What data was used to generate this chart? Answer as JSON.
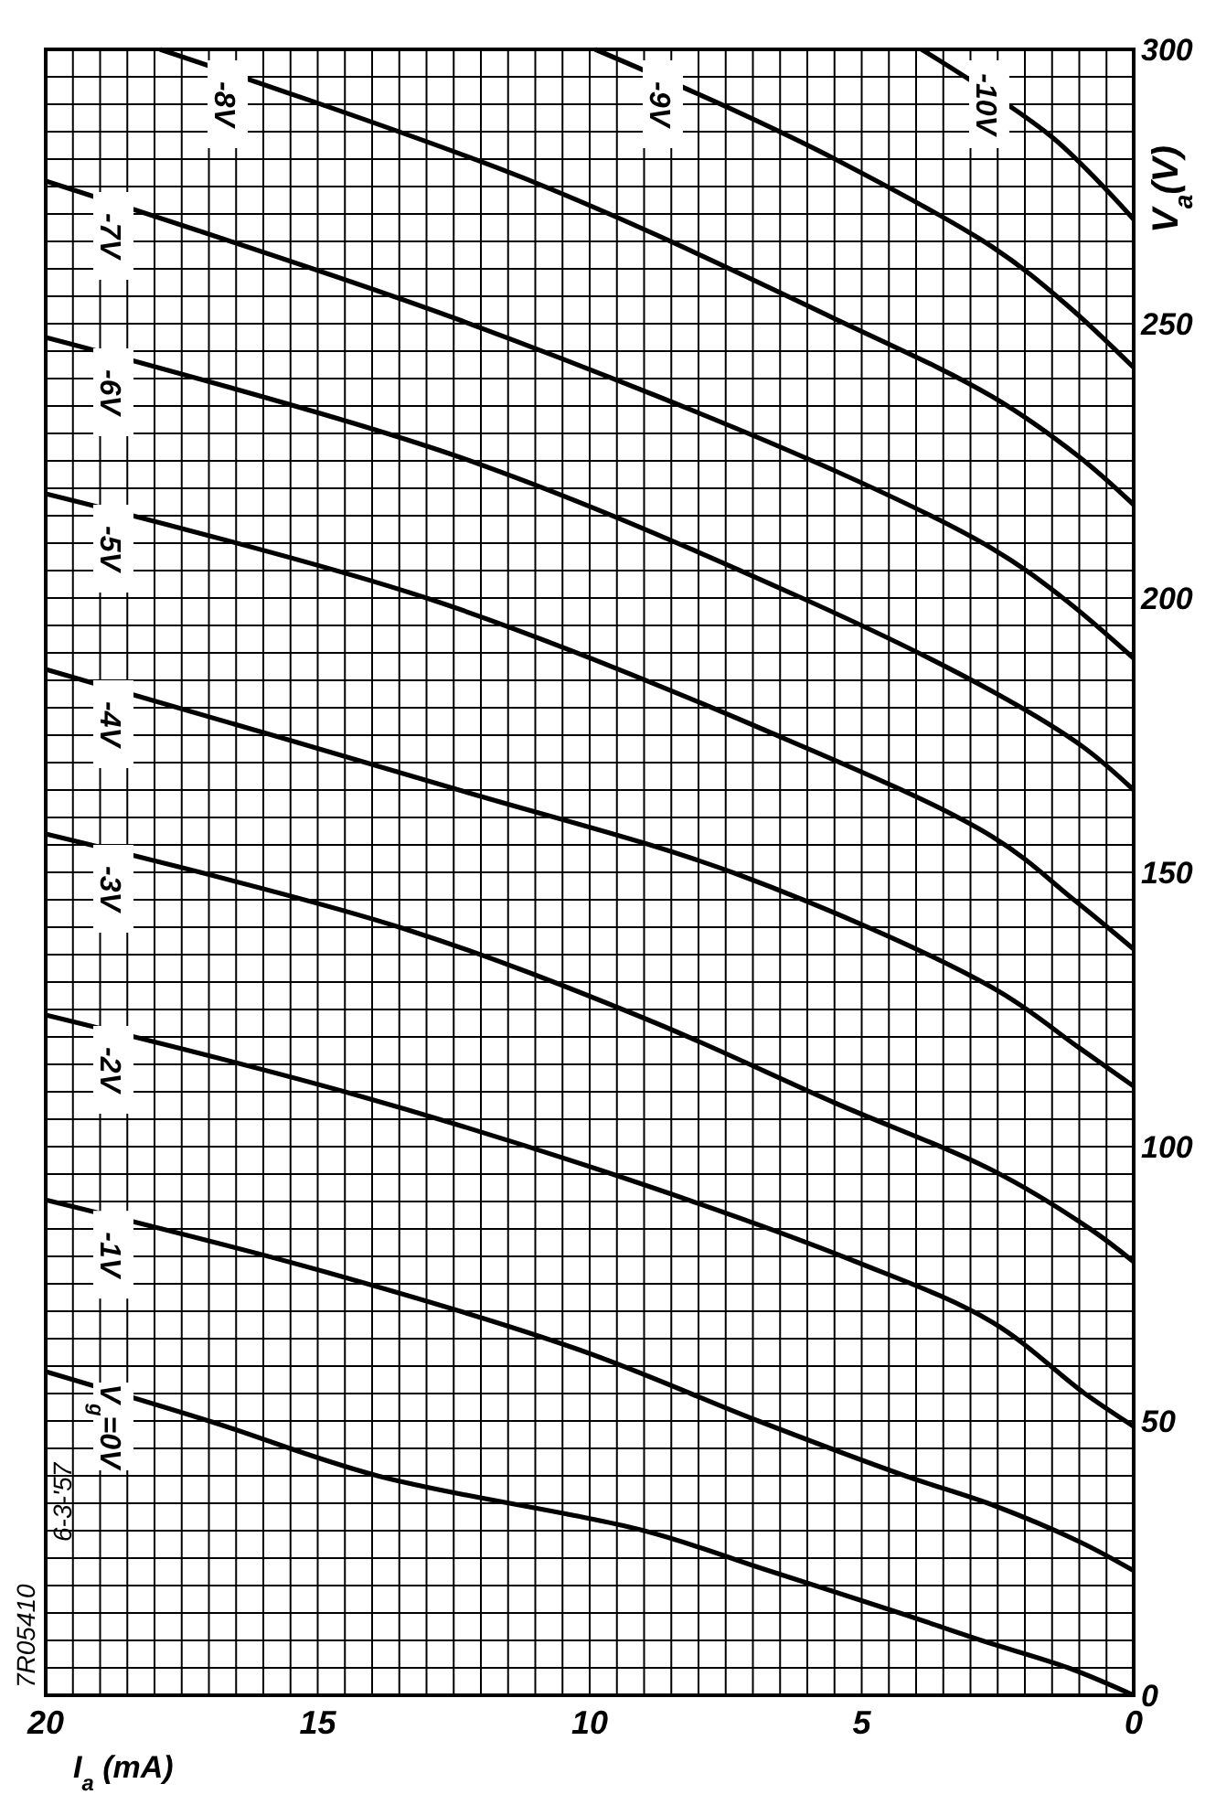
{
  "chart_data": {
    "type": "line",
    "xlabel": "I$_{a}$ (mA)",
    "ylabel": "V$_{a}$(V)",
    "xlim": [
      20,
      0
    ],
    "ylim": [
      0,
      300
    ],
    "yticks": [
      0,
      {
        "value": 5,
        "label": null
      },
      {
        "value": 10,
        "label": null
      },
      {
        "value": 15,
        "label": null
      },
      {
        "value": 20,
        "label": null
      },
      {
        "value": 25,
        "label": null
      },
      {
        "value": 30,
        "label": null
      },
      {
        "value": 35,
        "label": null
      },
      {
        "value": 40,
        "label": null
      },
      {
        "value": 45,
        "label": null
      },
      50,
      {
        "value": 55,
        "label": null
      },
      {
        "value": 60,
        "label": null
      },
      {
        "value": 65,
        "label": null
      },
      {
        "value": 70,
        "label": null
      },
      {
        "value": 75,
        "label": null
      },
      {
        "value": 80,
        "label": null
      },
      {
        "value": 85,
        "label": null
      },
      {
        "value": 90,
        "label": null
      },
      {
        "value": 95,
        "label": null
      },
      100,
      {
        "value": 105,
        "label": null
      },
      {
        "value": 110,
        "label": null
      },
      {
        "value": 115,
        "label": null
      },
      {
        "value": 120,
        "label": null
      },
      {
        "value": 125,
        "label": null
      },
      {
        "value": 130,
        "label": null
      },
      {
        "value": 135,
        "label": null
      },
      {
        "value": 140,
        "label": null
      },
      {
        "value": 145,
        "label": null
      },
      150,
      {
        "value": 155,
        "label": null
      },
      {
        "value": 160,
        "label": null
      },
      {
        "value": 165,
        "label": null
      },
      {
        "value": 170,
        "label": null
      },
      {
        "value": 175,
        "label": null
      },
      {
        "value": 180,
        "label": null
      },
      {
        "value": 185,
        "label": null
      },
      {
        "value": 190,
        "label": null
      },
      {
        "value": 195,
        "label": null
      },
      200,
      {
        "value": 205,
        "label": null
      },
      {
        "value": 210,
        "label": null
      },
      {
        "value": 215,
        "label": null
      },
      {
        "value": 220,
        "label": null
      },
      {
        "value": 225,
        "label": null
      },
      {
        "value": 230,
        "label": null
      },
      {
        "value": 235,
        "label": null
      },
      {
        "value": 240,
        "label": null
      },
      {
        "value": 245,
        "label": null
      },
      250,
      {
        "value": 255,
        "label": null
      },
      {
        "value": 260,
        "label": null
      },
      {
        "value": 265,
        "label": null
      },
      {
        "value": 270,
        "label": null
      },
      {
        "value": 275,
        "label": null
      },
      {
        "value": 280,
        "label": null
      },
      {
        "value": 285,
        "label": null
      },
      {
        "value": 290,
        "label": null
      },
      {
        "value": 295,
        "label": null
      },
      300
    ],
    "xticks": [
      0,
      {
        "value": 0.5,
        "label": null
      },
      {
        "value": 1,
        "label": null
      },
      {
        "value": 1.5,
        "label": null
      },
      {
        "value": 2,
        "label": null
      },
      {
        "value": 2.5,
        "label": null
      },
      {
        "value": 3,
        "label": null
      },
      {
        "value": 3.5,
        "label": null
      },
      {
        "value": 4,
        "label": null
      },
      {
        "value": 4.5,
        "label": null
      },
      5,
      {
        "value": 5.5,
        "label": null
      },
      {
        "value": 6,
        "label": null
      },
      {
        "value": 6.5,
        "label": null
      },
      {
        "value": 7,
        "label": null
      },
      {
        "value": 7.5,
        "label": null
      },
      {
        "value": 8,
        "label": null
      },
      {
        "value": 8.5,
        "label": null
      },
      {
        "value": 9,
        "label": null
      },
      {
        "value": 9.5,
        "label": null
      },
      10,
      {
        "value": 10.5,
        "label": null
      },
      {
        "value": 11,
        "label": null
      },
      {
        "value": 11.5,
        "label": null
      },
      {
        "value": 12,
        "label": null
      },
      {
        "value": 12.5,
        "label": null
      },
      {
        "value": 13,
        "label": null
      },
      {
        "value": 13.5,
        "label": null
      },
      {
        "value": 14,
        "label": null
      },
      {
        "value": 14.5,
        "label": null
      },
      15,
      {
        "value": 15.5,
        "label": null
      },
      {
        "value": 16,
        "label": null
      },
      {
        "value": 16.5,
        "label": null
      },
      {
        "value": 17,
        "label": null
      },
      {
        "value": 17.5,
        "label": null
      },
      {
        "value": 18,
        "label": null
      },
      {
        "value": 18.5,
        "label": null
      },
      {
        "value": 19,
        "label": null
      },
      {
        "value": 19.5,
        "label": null
      },
      20
    ],
    "grid": true,
    "annotations": [
      "7R05410",
      "6-3-'57"
    ],
    "series": [
      {
        "name": "V$_{g}$=0V",
        "color": "#000000",
        "values": [
          0,
          5,
          10,
          15,
          23,
          30,
          40,
          50,
          59
        ],
        "x": [
          0,
          1.2,
          2.8,
          4.3,
          6.8,
          9,
          13.9,
          17,
          20
        ]
      },
      {
        "name": "-1V",
        "color": "#000000",
        "values": [
          22.7,
          28,
          34.7,
          40,
          50,
          63,
          77,
          90.3
        ],
        "x": [
          0,
          1,
          2.6,
          4.2,
          6.9,
          10.2,
          14.8,
          20
        ]
      },
      {
        "name": "-2V",
        "color": "#000000",
        "values": [
          49,
          55,
          68,
          79,
          95.7,
          110,
          124
        ],
        "x": [
          0,
          0.9,
          2.6,
          5.1,
          9.8,
          14.5,
          20
        ]
      },
      {
        "name": "-3V",
        "color": "#000000",
        "values": [
          79,
          85,
          95.7,
          108,
          123,
          140,
          157
        ],
        "x": [
          0,
          0.8,
          2.6,
          5.5,
          8.9,
          13.5,
          20
        ]
      },
      {
        "name": "-4V",
        "color": "#000000",
        "values": [
          111,
          118,
          129,
          149.7,
          165,
          187
        ],
        "x": [
          0,
          1,
          2.6,
          7.3,
          12.4,
          20
        ]
      },
      {
        "name": "-5V",
        "color": "#000000",
        "values": [
          136,
          145,
          156.5,
          176,
          200,
          219
        ],
        "x": [
          0,
          1.1,
          2.6,
          6.8,
          13,
          20
        ]
      },
      {
        "name": "-6V",
        "color": "#000000",
        "values": [
          165,
          173,
          183,
          200,
          225.7,
          247.5
        ],
        "x": [
          0,
          0.95,
          2.6,
          6.1,
          12.4,
          20
        ]
      },
      {
        "name": "-7V",
        "color": "#000000",
        "values": [
          189,
          200,
          209,
          223,
          250.7,
          276
        ],
        "x": [
          0,
          1.3,
          2.6,
          5.45,
          12.4,
          20
        ]
      },
      {
        "name": "-8V",
        "color": "#000000",
        "values": [
          217,
          225.7,
          236.7,
          250.7,
          275.7,
          300
        ],
        "x": [
          0,
          1,
          2.6,
          5.45,
          11,
          17.9
        ]
      },
      {
        "name": "-9V",
        "color": "#000000",
        "values": [
          242,
          253.5,
          264,
          279.8,
          289.6,
          300
        ],
        "x": [
          0,
          1.24,
          2.6,
          5.45,
          7.5,
          9.9
        ]
      },
      {
        "name": "-10V",
        "color": "#000000",
        "values": [
          269,
          284,
          300
        ],
        "x": [
          0,
          1.5,
          3.9
        ]
      }
    ]
  }
}
